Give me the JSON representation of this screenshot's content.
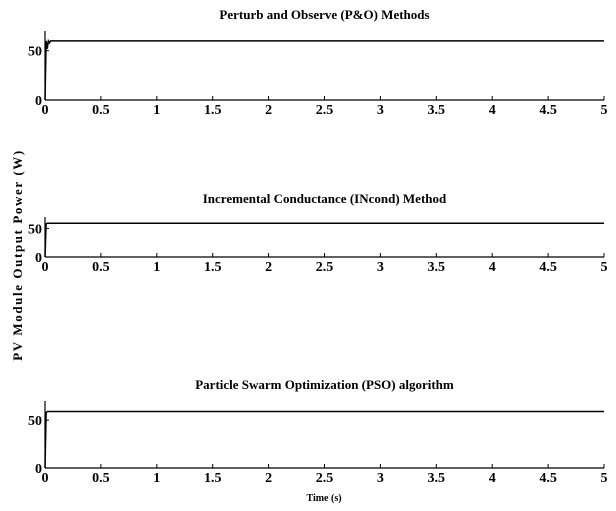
{
  "chart_data": {
    "type": "line",
    "ylabel": "PV Module Output Power (W)",
    "xlabel": "Time (s)",
    "xlim": [
      0,
      5
    ],
    "xticks": [
      "0",
      "0.5",
      "1",
      "1.5",
      "2",
      "2.5",
      "3",
      "3.5",
      "4",
      "4.5",
      "5"
    ],
    "line_color": "#000000",
    "grid": false,
    "panels": [
      {
        "title": "Perturb and Observe (P&O) Methods",
        "ylim": [
          0,
          70
        ],
        "yticks": [
          "0",
          "50"
        ],
        "series": [
          {
            "x": [
              0,
              0.01,
              0.02,
              0.03,
              0.04,
              0.05,
              5
            ],
            "y": [
              0,
              60,
              52,
              60,
              58,
              60,
              60
            ],
            "band": 0
          }
        ]
      },
      {
        "title": "Incremental Conductance (INcond) Method",
        "ylim": [
          0,
          70
        ],
        "yticks": [
          "0",
          "50"
        ],
        "series": [
          {
            "x": [
              0,
              0.01,
              0.02,
              5
            ],
            "y": [
              0,
              58,
              59,
              59
            ],
            "band": 2.5
          }
        ]
      },
      {
        "title": "Particle Swarm Optimization (PSO) algorithm",
        "ylim": [
          0,
          70
        ],
        "yticks": [
          "0",
          "50"
        ],
        "series": [
          {
            "x": [
              0,
              0.01,
              0.02,
              5
            ],
            "y": [
              0,
              58,
              59,
              59
            ],
            "band": 0
          }
        ]
      }
    ]
  }
}
